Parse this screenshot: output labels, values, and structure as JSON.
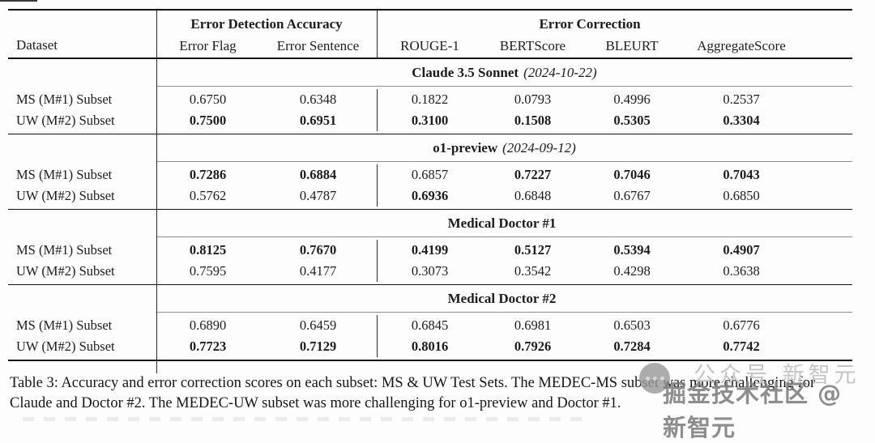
{
  "table": {
    "header": {
      "dataset": "Dataset",
      "group_detection": "Error Detection Accuracy",
      "group_correction": "Error Correction",
      "cols": [
        "Error Flag",
        "Error Sentence",
        "ROUGE-1",
        "BERTScore",
        "BLEURT",
        "AggregateScore"
      ]
    },
    "sections": [
      {
        "model": "Claude 3.5 Sonnet",
        "date": "(2024-10-22)",
        "rows": [
          {
            "label": "MS (M#1) Subset",
            "values": [
              "0.6750",
              "0.6348",
              "0.1822",
              "0.0793",
              "0.4996",
              "0.2537"
            ],
            "bold": [
              false,
              false,
              false,
              false,
              false,
              false
            ]
          },
          {
            "label": "UW (M#2) Subset",
            "values": [
              "0.7500",
              "0.6951",
              "0.3100",
              "0.1508",
              "0.5305",
              "0.3304"
            ],
            "bold": [
              true,
              true,
              true,
              true,
              true,
              true
            ]
          }
        ]
      },
      {
        "model": "o1-preview",
        "date": "(2024-09-12)",
        "rows": [
          {
            "label": "MS (M#1) Subset",
            "values": [
              "0.7286",
              "0.6884",
              "0.6857",
              "0.7227",
              "0.7046",
              "0.7043"
            ],
            "bold": [
              true,
              true,
              false,
              true,
              true,
              true
            ]
          },
          {
            "label": "UW (M#2) Subset",
            "values": [
              "0.5762",
              "0.4787",
              "0.6936",
              "0.6848",
              "0.6767",
              "0.6850"
            ],
            "bold": [
              false,
              false,
              true,
              false,
              false,
              false
            ]
          }
        ]
      },
      {
        "model": "Medical Doctor #1",
        "date": "",
        "rows": [
          {
            "label": "MS (M#1) Subset",
            "values": [
              "0.8125",
              "0.7670",
              "0.4199",
              "0.5127",
              "0.5394",
              "0.4907"
            ],
            "bold": [
              true,
              true,
              true,
              true,
              true,
              true
            ]
          },
          {
            "label": "UW (M#2) Subset",
            "values": [
              "0.7595",
              "0.4177",
              "0.3073",
              "0.3542",
              "0.4298",
              "0.3638"
            ],
            "bold": [
              false,
              false,
              false,
              false,
              false,
              false
            ]
          }
        ]
      },
      {
        "model": "Medical Doctor #2",
        "date": "",
        "rows": [
          {
            "label": "MS (M#1) Subset",
            "values": [
              "0.6890",
              "0.6459",
              "0.6845",
              "0.6981",
              "0.6503",
              "0.6776"
            ],
            "bold": [
              false,
              false,
              false,
              false,
              false,
              false
            ]
          },
          {
            "label": "UW (M#2) Subset",
            "values": [
              "0.7723",
              "0.7129",
              "0.8016",
              "0.7926",
              "0.7284",
              "0.7742"
            ],
            "bold": [
              true,
              true,
              true,
              true,
              true,
              true
            ]
          }
        ]
      }
    ]
  },
  "caption": "Table 3: Accuracy and error correction scores on each subset: MS & UW Test Sets. The MEDEC-MS subset was more challenging for Claude and Doctor #2. The MEDEC-UW subset was more challenging for o1-preview and Doctor #1.",
  "watermark": {
    "faint_text": "公众号 新智元",
    "main_text": "掘金技术社区 @ 新智元"
  },
  "colors": {
    "rule_heavy": "#141414",
    "rule_thin": "#8f8f8f",
    "text": "#1c1c1c",
    "watermark_gray": "#7e7e7e"
  }
}
